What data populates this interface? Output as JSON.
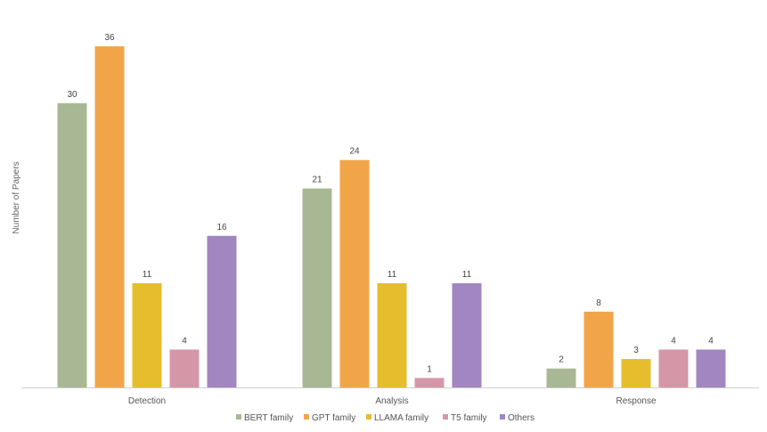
{
  "chart_data": {
    "type": "bar",
    "title": "",
    "xlabel": "",
    "ylabel": "Number of Papers",
    "ylim": [
      0,
      36
    ],
    "grid": false,
    "legend_position": "bottom",
    "categories": [
      "Detection",
      "Analysis",
      "Response"
    ],
    "series": [
      {
        "name": "BERT family",
        "color": "#a8b894",
        "values": [
          30,
          21,
          2
        ]
      },
      {
        "name": "GPT family",
        "color": "#f2a548",
        "values": [
          36,
          24,
          8
        ]
      },
      {
        "name": "LLAMA family",
        "color": "#e6bd2d",
        "values": [
          11,
          11,
          3
        ]
      },
      {
        "name": "T5 family",
        "color": "#d597a8",
        "values": [
          4,
          1,
          4
        ]
      },
      {
        "name": "Others",
        "color": "#a186c1",
        "values": [
          16,
          11,
          4
        ]
      }
    ]
  }
}
